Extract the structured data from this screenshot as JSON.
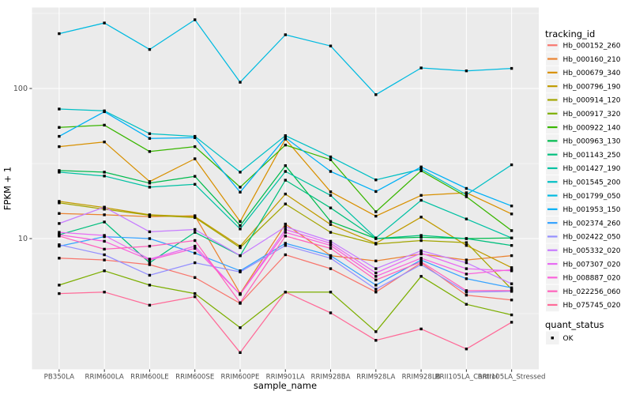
{
  "figure": {
    "panel_background": "#EBEBEB",
    "grid_color": "#FFFFFF",
    "axis_text_color": "#4D4D4D",
    "tick_mark_color": "#333333",
    "title_color": "#000000",
    "legend_key_fill": "#F2F2F2",
    "marker_color": "#000000"
  },
  "legend": {
    "tracking_title": "tracking_id",
    "quant_title": "quant_status",
    "quant_items": [
      {
        "label": "OK",
        "marker": "black-square"
      }
    ]
  },
  "chart_data": {
    "type": "line",
    "title": "",
    "xlabel": "sample_name",
    "ylabel": "FPKM + 1",
    "y_scale": "log10",
    "y_ticks": [
      10,
      100
    ],
    "ylim": [
      1.3,
      350
    ],
    "grid": true,
    "legend_position": "right",
    "marker": "black-square",
    "categories": [
      "PB350LA",
      "RRIM600LA",
      "RRIM600LE",
      "RRIM600SE",
      "RRIM600PE",
      "RRIM901LA",
      "RRIM928BA",
      "RRIM928LA",
      "RRIM928LB",
      "RRII105LA_Control",
      "RRII105LA_Stressed"
    ],
    "series": [
      {
        "name": "Hb_000152_260",
        "color": "#F8766D",
        "values": [
          7.4,
          7.2,
          6.7,
          5.5,
          3.7,
          7.8,
          6.3,
          4.4,
          6.9,
          4.2,
          3.9
        ]
      },
      {
        "name": "Hb_000160_210",
        "color": "#EA8331",
        "values": [
          14.7,
          14.4,
          14.0,
          14.2,
          4.3,
          12.5,
          7.7,
          7.1,
          7.9,
          7.2,
          7.7
        ]
      },
      {
        "name": "Hb_000679_340",
        "color": "#D89000",
        "values": [
          41,
          44,
          24,
          34,
          13,
          46,
          20.5,
          14.1,
          19.4,
          20.2,
          14.6
        ]
      },
      {
        "name": "Hb_000796_190",
        "color": "#C09B00",
        "values": [
          17.7,
          16.1,
          14.4,
          14.0,
          8.9,
          19.8,
          12.4,
          9.3,
          13.9,
          9.0,
          6.4
        ]
      },
      {
        "name": "Hb_000914_120",
        "color": "#A3A500",
        "values": [
          17.3,
          15.7,
          14.3,
          13.8,
          8.7,
          17.0,
          11.0,
          9.2,
          9.7,
          9.4,
          4.6
        ]
      },
      {
        "name": "Hb_000917_320",
        "color": "#7CAE00",
        "values": [
          4.9,
          6.1,
          4.9,
          4.3,
          2.55,
          4.4,
          4.4,
          2.4,
          5.6,
          3.65,
          3.1
        ]
      },
      {
        "name": "Hb_000922_140",
        "color": "#39B600",
        "values": [
          55,
          57,
          38,
          41,
          22,
          42,
          33.5,
          15.1,
          28.3,
          19.0,
          11.3
        ]
      },
      {
        "name": "Hb_000963_130",
        "color": "#00BB4E",
        "values": [
          28.4,
          27.7,
          23.4,
          26,
          12.2,
          30.6,
          13.0,
          10.0,
          10.2,
          10.0,
          10.1
        ]
      },
      {
        "name": "Hb_001143_250",
        "color": "#00BF7D",
        "values": [
          10.6,
          12.9,
          6.9,
          11.0,
          7.7,
          24.5,
          16.0,
          10.0,
          10.5,
          10.0,
          9.0
        ]
      },
      {
        "name": "Hb_001427_190",
        "color": "#00C1A3",
        "values": [
          27.7,
          26.1,
          22.0,
          23.0,
          11.6,
          28.0,
          19.4,
          10.1,
          18.0,
          13.5,
          10.1
        ]
      },
      {
        "name": "Hb_001545_200",
        "color": "#00BFC4",
        "values": [
          73,
          71,
          50,
          48,
          27.7,
          48.5,
          35,
          24.6,
          29,
          19.6,
          31
        ]
      },
      {
        "name": "Hb_001799_050",
        "color": "#00BAE0",
        "values": [
          232,
          273,
          182,
          287,
          110,
          228,
          192,
          91,
          137,
          131,
          136
        ]
      },
      {
        "name": "Hb_001953_150",
        "color": "#00B0F6",
        "values": [
          48,
          70,
          46.5,
          47,
          20.4,
          47,
          28,
          20.6,
          30,
          21.6,
          16.5
        ]
      },
      {
        "name": "Hb_002374_260",
        "color": "#35A2FF",
        "values": [
          8.9,
          10.3,
          10.0,
          8.0,
          6.1,
          9.3,
          7.7,
          4.9,
          7.2,
          5.4,
          4.7
        ]
      },
      {
        "name": "Hb_002422_050",
        "color": "#9590FF",
        "values": [
          9.1,
          7.8,
          5.7,
          6.9,
          6.0,
          9.0,
          7.4,
          4.6,
          6.7,
          4.4,
          4.45
        ]
      },
      {
        "name": "Hb_005332_020",
        "color": "#C77CFF",
        "values": [
          12.6,
          16.2,
          11.1,
          11.5,
          7.7,
          12.0,
          9.6,
          6.3,
          8.3,
          6.9,
          5.0
        ]
      },
      {
        "name": "Hb_007307_020",
        "color": "#E76BF3",
        "values": [
          11.0,
          10.5,
          7.3,
          8.9,
          4.25,
          11.5,
          9.3,
          5.9,
          8.0,
          6.3,
          6.1
        ]
      },
      {
        "name": "Hb_008887_020",
        "color": "#FA62DB",
        "values": [
          10.6,
          9.6,
          7.2,
          8.6,
          4.25,
          11.0,
          9.0,
          5.6,
          7.4,
          5.8,
          6.2
        ]
      },
      {
        "name": "Hb_022256_060",
        "color": "#FF62BC",
        "values": [
          10.4,
          8.5,
          8.9,
          9.7,
          3.74,
          10.4,
          8.6,
          5.3,
          7.0,
          4.5,
          4.5
        ]
      },
      {
        "name": "Hb_075745_020",
        "color": "#FF6A98",
        "values": [
          4.3,
          4.4,
          3.6,
          4.1,
          1.74,
          4.4,
          3.2,
          2.1,
          2.5,
          1.84,
          2.77
        ]
      }
    ]
  }
}
